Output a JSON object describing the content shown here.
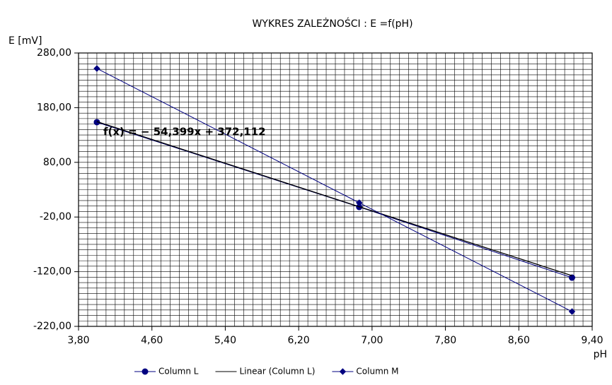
{
  "chart_data": {
    "type": "line",
    "title": "WYKRES ZALEŻNOŚCI :  E =f(pH)",
    "y_label": "E [mV]",
    "x_label": "pH",
    "annotation": "f(x) = − 54,399x + 372,112",
    "x": [
      4.0,
      6.86,
      9.18
    ],
    "series": [
      {
        "name": "Column L",
        "color": "#000080",
        "marker": "circle",
        "values": [
          153.4,
          -1.7,
          -130.9
        ]
      },
      {
        "name": "Linear (Column L)",
        "color": "#000000",
        "marker": "none",
        "values": [
          154.5,
          -1.1,
          -127.3
        ]
      },
      {
        "name": "Column M",
        "color": "#000080",
        "marker": "diamond",
        "values": [
          251.6,
          6.1,
          -192.9
        ]
      }
    ],
    "xlim": [
      3.8,
      9.4
    ],
    "ylim": [
      -220,
      280
    ],
    "xticks": [
      {
        "value": 3.8,
        "label": "3,80"
      },
      {
        "value": 4.6,
        "label": "4,60"
      },
      {
        "value": 5.4,
        "label": "5,40"
      },
      {
        "value": 6.2,
        "label": "6,20"
      },
      {
        "value": 7.0,
        "label": "7,00"
      },
      {
        "value": 7.8,
        "label": "7,80"
      },
      {
        "value": 8.6,
        "label": "8,60"
      },
      {
        "value": 9.4,
        "label": "9,40"
      }
    ],
    "yticks": [
      {
        "value": -220,
        "label": "-220,00"
      },
      {
        "value": -120,
        "label": "-120,00"
      },
      {
        "value": -20,
        "label": "-20,00"
      },
      {
        "value": 80,
        "label": "80,00"
      },
      {
        "value": 180,
        "label": "180,00"
      },
      {
        "value": 280,
        "label": "280,00"
      }
    ],
    "x_minor_step": 0.1,
    "y_minor_step": 10,
    "grid": true,
    "legend": "bottom"
  }
}
